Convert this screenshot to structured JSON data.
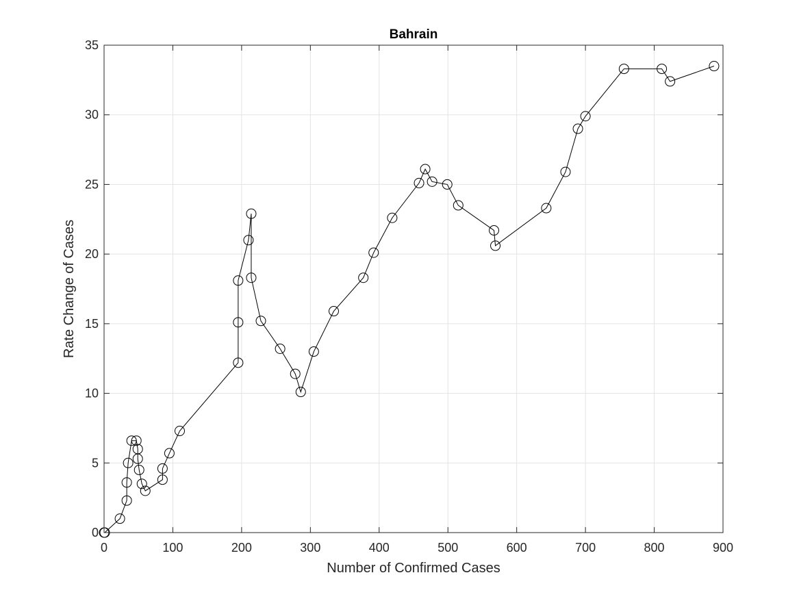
{
  "chart_data": {
    "type": "line",
    "title": "Bahrain",
    "xlabel": "Number of Confirmed Cases",
    "ylabel": "Rate Change of Cases",
    "xlim": [
      0,
      900
    ],
    "ylim": [
      0,
      35
    ],
    "xticks": [
      "0",
      "100",
      "200",
      "300",
      "400",
      "500",
      "600",
      "700",
      "800",
      "900"
    ],
    "yticks": [
      "0",
      "5",
      "10",
      "15",
      "20",
      "25",
      "30",
      "35"
    ],
    "grid": true,
    "marker": "open-circle",
    "line_color": "#000000",
    "series": [
      {
        "x": [
          0,
          1,
          23,
          33,
          33,
          35,
          40,
          47,
          49,
          49,
          51,
          55,
          60,
          85,
          85,
          95,
          110,
          195,
          195,
          195,
          210,
          214,
          214,
          228,
          256,
          278,
          286,
          305,
          334,
          377,
          392,
          419,
          458,
          467,
          477,
          499,
          515,
          567,
          569,
          643,
          671,
          689,
          700,
          756,
          811,
          823,
          887
        ],
        "y": [
          0,
          0,
          1,
          2.3,
          3.6,
          5,
          6.6,
          6.6,
          6,
          5.3,
          4.5,
          3.5,
          3,
          3.8,
          4.6,
          5.7,
          7.3,
          12.2,
          15.1,
          18.1,
          21,
          22.9,
          18.3,
          15.2,
          13.2,
          11.4,
          10.1,
          13,
          15.9,
          18.3,
          20.1,
          22.6,
          25.1,
          26.1,
          25.2,
          25,
          23.5,
          21.7,
          20.6,
          23.3,
          25.9,
          29,
          29.9,
          33.3,
          33.3,
          32.4,
          33.5
        ]
      }
    ]
  }
}
